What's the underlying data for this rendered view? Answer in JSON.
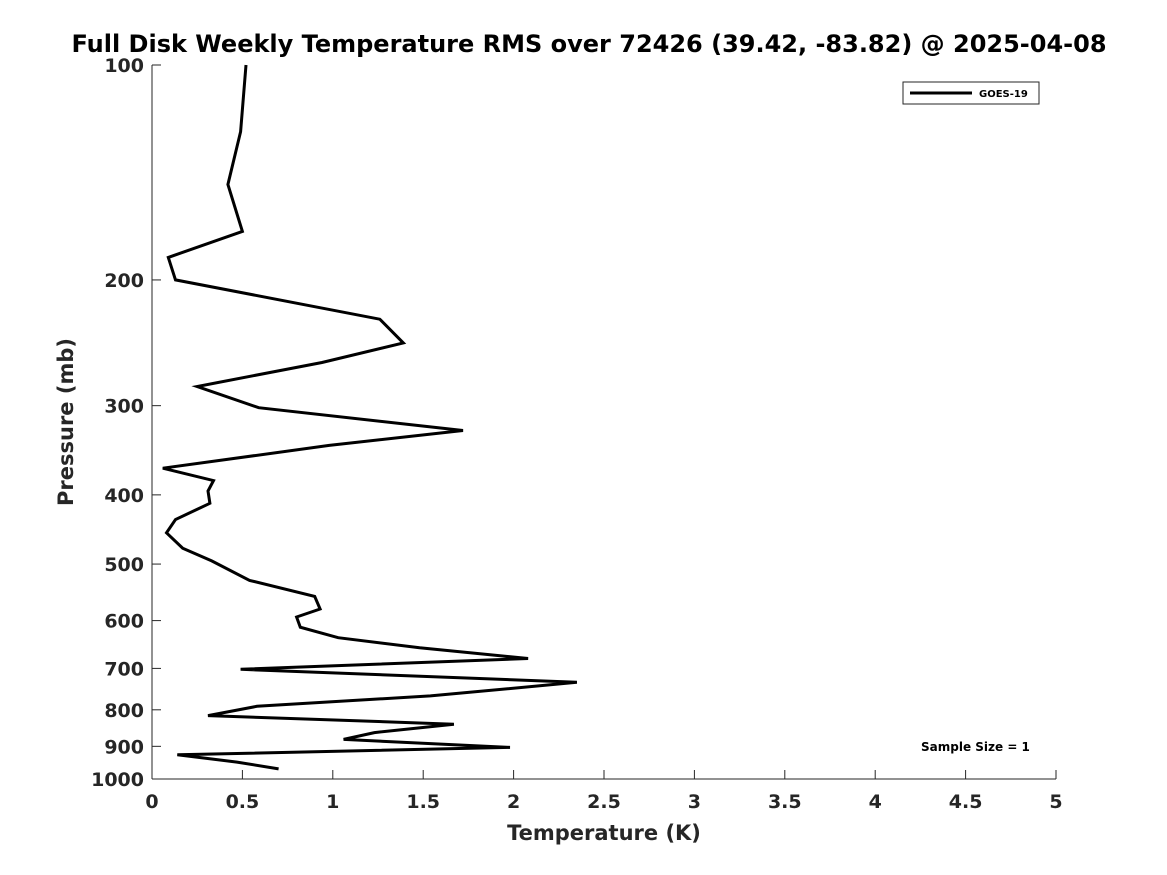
{
  "chart_data": {
    "type": "line",
    "title": "Full Disk Weekly Temperature RMS over 72426 (39.42, -83.82) @ 2025-04-08",
    "xlabel": "Temperature (K)",
    "ylabel": "Pressure (mb)",
    "xlim": [
      0,
      5
    ],
    "ylim": [
      100,
      1000
    ],
    "yscale": "log",
    "y_reversed": true,
    "xticks": [
      "0",
      "0.5",
      "1",
      "1.5",
      "2",
      "2.5",
      "3",
      "3.5",
      "4",
      "4.5",
      "5"
    ],
    "yticks": [
      "100",
      "200",
      "300",
      "400",
      "500",
      "600",
      "700",
      "800",
      "900",
      "1000"
    ],
    "legend": {
      "location": "top-right",
      "entries": [
        "GOES-19"
      ]
    },
    "annotation": "Sample Size = 1",
    "grid": false,
    "series": [
      {
        "name": "GOES-19",
        "color": "#000000",
        "x": [
          0.52,
          0.49,
          0.42,
          0.5,
          0.09,
          0.13,
          1.26,
          1.39,
          0.94,
          0.25,
          0.59,
          1.72,
          0.98,
          0.06,
          0.34,
          0.31,
          0.32,
          0.13,
          0.08,
          0.17,
          0.33,
          0.54,
          0.9,
          0.93,
          0.8,
          0.82,
          1.03,
          1.48,
          2.08,
          0.49,
          2.35,
          1.54,
          0.58,
          0.31,
          1.67,
          1.23,
          1.06,
          1.98,
          0.14,
          0.47,
          0.7
        ],
        "y": [
          100,
          124,
          147,
          171,
          186,
          200,
          227,
          245,
          261,
          282,
          302,
          325,
          341,
          367,
          382,
          395,
          411,
          433,
          452,
          475,
          495,
          527,
          555,
          578,
          593,
          613,
          634,
          655,
          678,
          702,
          732,
          765,
          791,
          815,
          838,
          861,
          880,
          903,
          925,
          947,
          968
        ]
      }
    ]
  }
}
